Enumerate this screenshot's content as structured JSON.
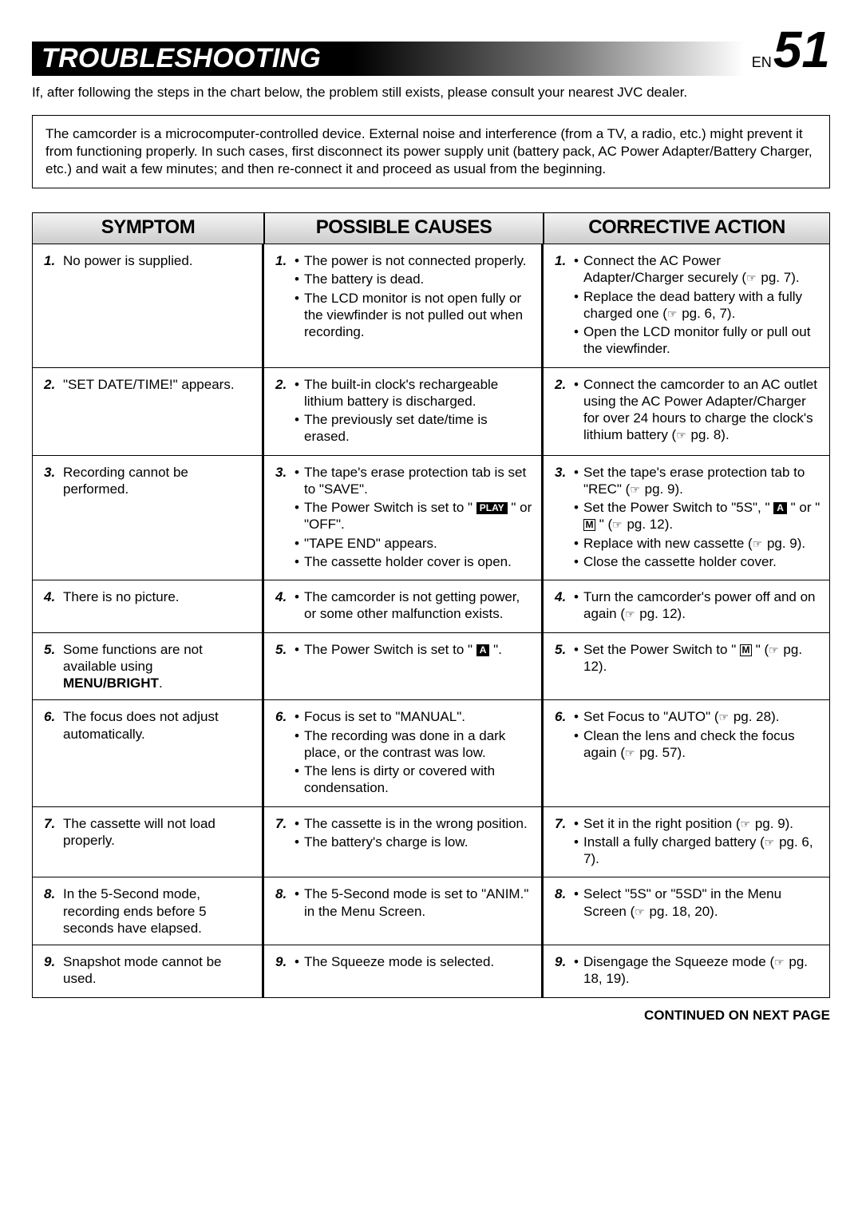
{
  "header": {
    "title": "TROUBLESHOOTING",
    "lang": "EN",
    "page": "51"
  },
  "intro": "If, after following the steps in the chart below, the problem still exists, please consult your nearest JVC dealer.",
  "note": "The camcorder is a microcomputer-controlled device. External noise and interference (from a TV, a radio, etc.) might prevent it from functioning properly. In such cases, first disconnect its power supply unit (battery pack, AC Power Adapter/Battery Charger, etc.) and wait a few minutes; and then re-connect it and proceed as usual from the beginning.",
  "columns": {
    "symptom": "SYMPTOM",
    "causes": "POSSIBLE CAUSES",
    "action": "CORRECTIVE ACTION"
  },
  "rows": [
    {
      "n": "1.",
      "symptom": "No power is supplied.",
      "causes": [
        "The power is not connected properly.",
        "The battery is dead.",
        "The LCD monitor is not open fully or the viewfinder is not pulled out when recording."
      ],
      "actions": [
        "Connect the AC Power Adapter/Charger securely (<hand> pg. 7).",
        "Replace the dead battery with a fully charged one (<hand> pg. 6, 7).",
        "Open the LCD monitor fully or pull out the viewfinder."
      ]
    },
    {
      "n": "2.",
      "symptom": "\"SET DATE/TIME!\" appears.",
      "causes": [
        "The built-in clock's rechargeable lithium battery is discharged.",
        "The previously set date/time is erased."
      ],
      "actions": [
        "Connect the camcorder to an AC outlet using the AC Power Adapter/Charger for over 24 hours to charge the clock's lithium battery (<hand> pg. 8)."
      ]
    },
    {
      "n": "3.",
      "symptom": "Recording cannot be performed.",
      "causes": [
        "The tape's erase protection tab is set to \"SAVE\".",
        "The Power Switch is set to \" <play> \" or \"OFF\".",
        "\"TAPE END\" appears.",
        "The cassette holder cover is open."
      ],
      "actions": [
        "Set the tape's erase protection tab to \"REC\" (<hand> pg. 9).",
        "Set the Power Switch to \"5S\", \" <boxA> \" or \" <boxM> \" (<hand> pg. 12).",
        "Replace with new cassette (<hand> pg. 9).",
        "Close the cassette holder cover."
      ]
    },
    {
      "n": "4.",
      "symptom": "There is no picture.",
      "causes": [
        "The camcorder is not getting power, or some other malfunction exists."
      ],
      "actions": [
        "Turn the camcorder's power off and on again (<hand> pg. 12)."
      ]
    },
    {
      "n": "5.",
      "symptom": "Some functions are not available using <b>MENU/BRIGHT</b>.",
      "causes": [
        "The Power Switch is set to \" <boxAinv> \"."
      ],
      "actions": [
        "Set the Power Switch to \" <boxM> \" (<hand> pg. 12)."
      ]
    },
    {
      "n": "6.",
      "symptom": "The focus does not adjust automatically.",
      "causes": [
        "Focus is set to \"MANUAL\".",
        "The recording was done in a dark place, or the contrast was low.",
        "The lens is dirty or covered with condensation."
      ],
      "actions": [
        "Set Focus to \"AUTO\" (<hand> pg. 28).",
        "Clean the lens and check the focus again (<hand> pg. 57)."
      ]
    },
    {
      "n": "7.",
      "symptom": "The cassette will not load properly.",
      "causes": [
        "The cassette is in the wrong position.",
        "The battery's charge is low."
      ],
      "actions": [
        "Set it in the right position (<hand> pg. 9).",
        "Install a fully charged battery (<hand> pg. 6, 7)."
      ]
    },
    {
      "n": "8.",
      "symptom": "In the 5-Second mode, recording ends before 5 seconds have elapsed.",
      "causes": [
        "The 5-Second mode is set to \"ANIM.\" in the Menu Screen."
      ],
      "actions": [
        "Select \"5S\" or \"5SD\" in the Menu Screen (<hand> pg. 18, 20)."
      ]
    },
    {
      "n": "9.",
      "symptom": "Snapshot mode cannot be used.",
      "causes": [
        "The Squeeze mode is selected."
      ],
      "actions": [
        "Disengage the Squeeze mode (<hand> pg. 18, 19)."
      ]
    }
  ],
  "footer": "CONTINUED ON NEXT PAGE"
}
